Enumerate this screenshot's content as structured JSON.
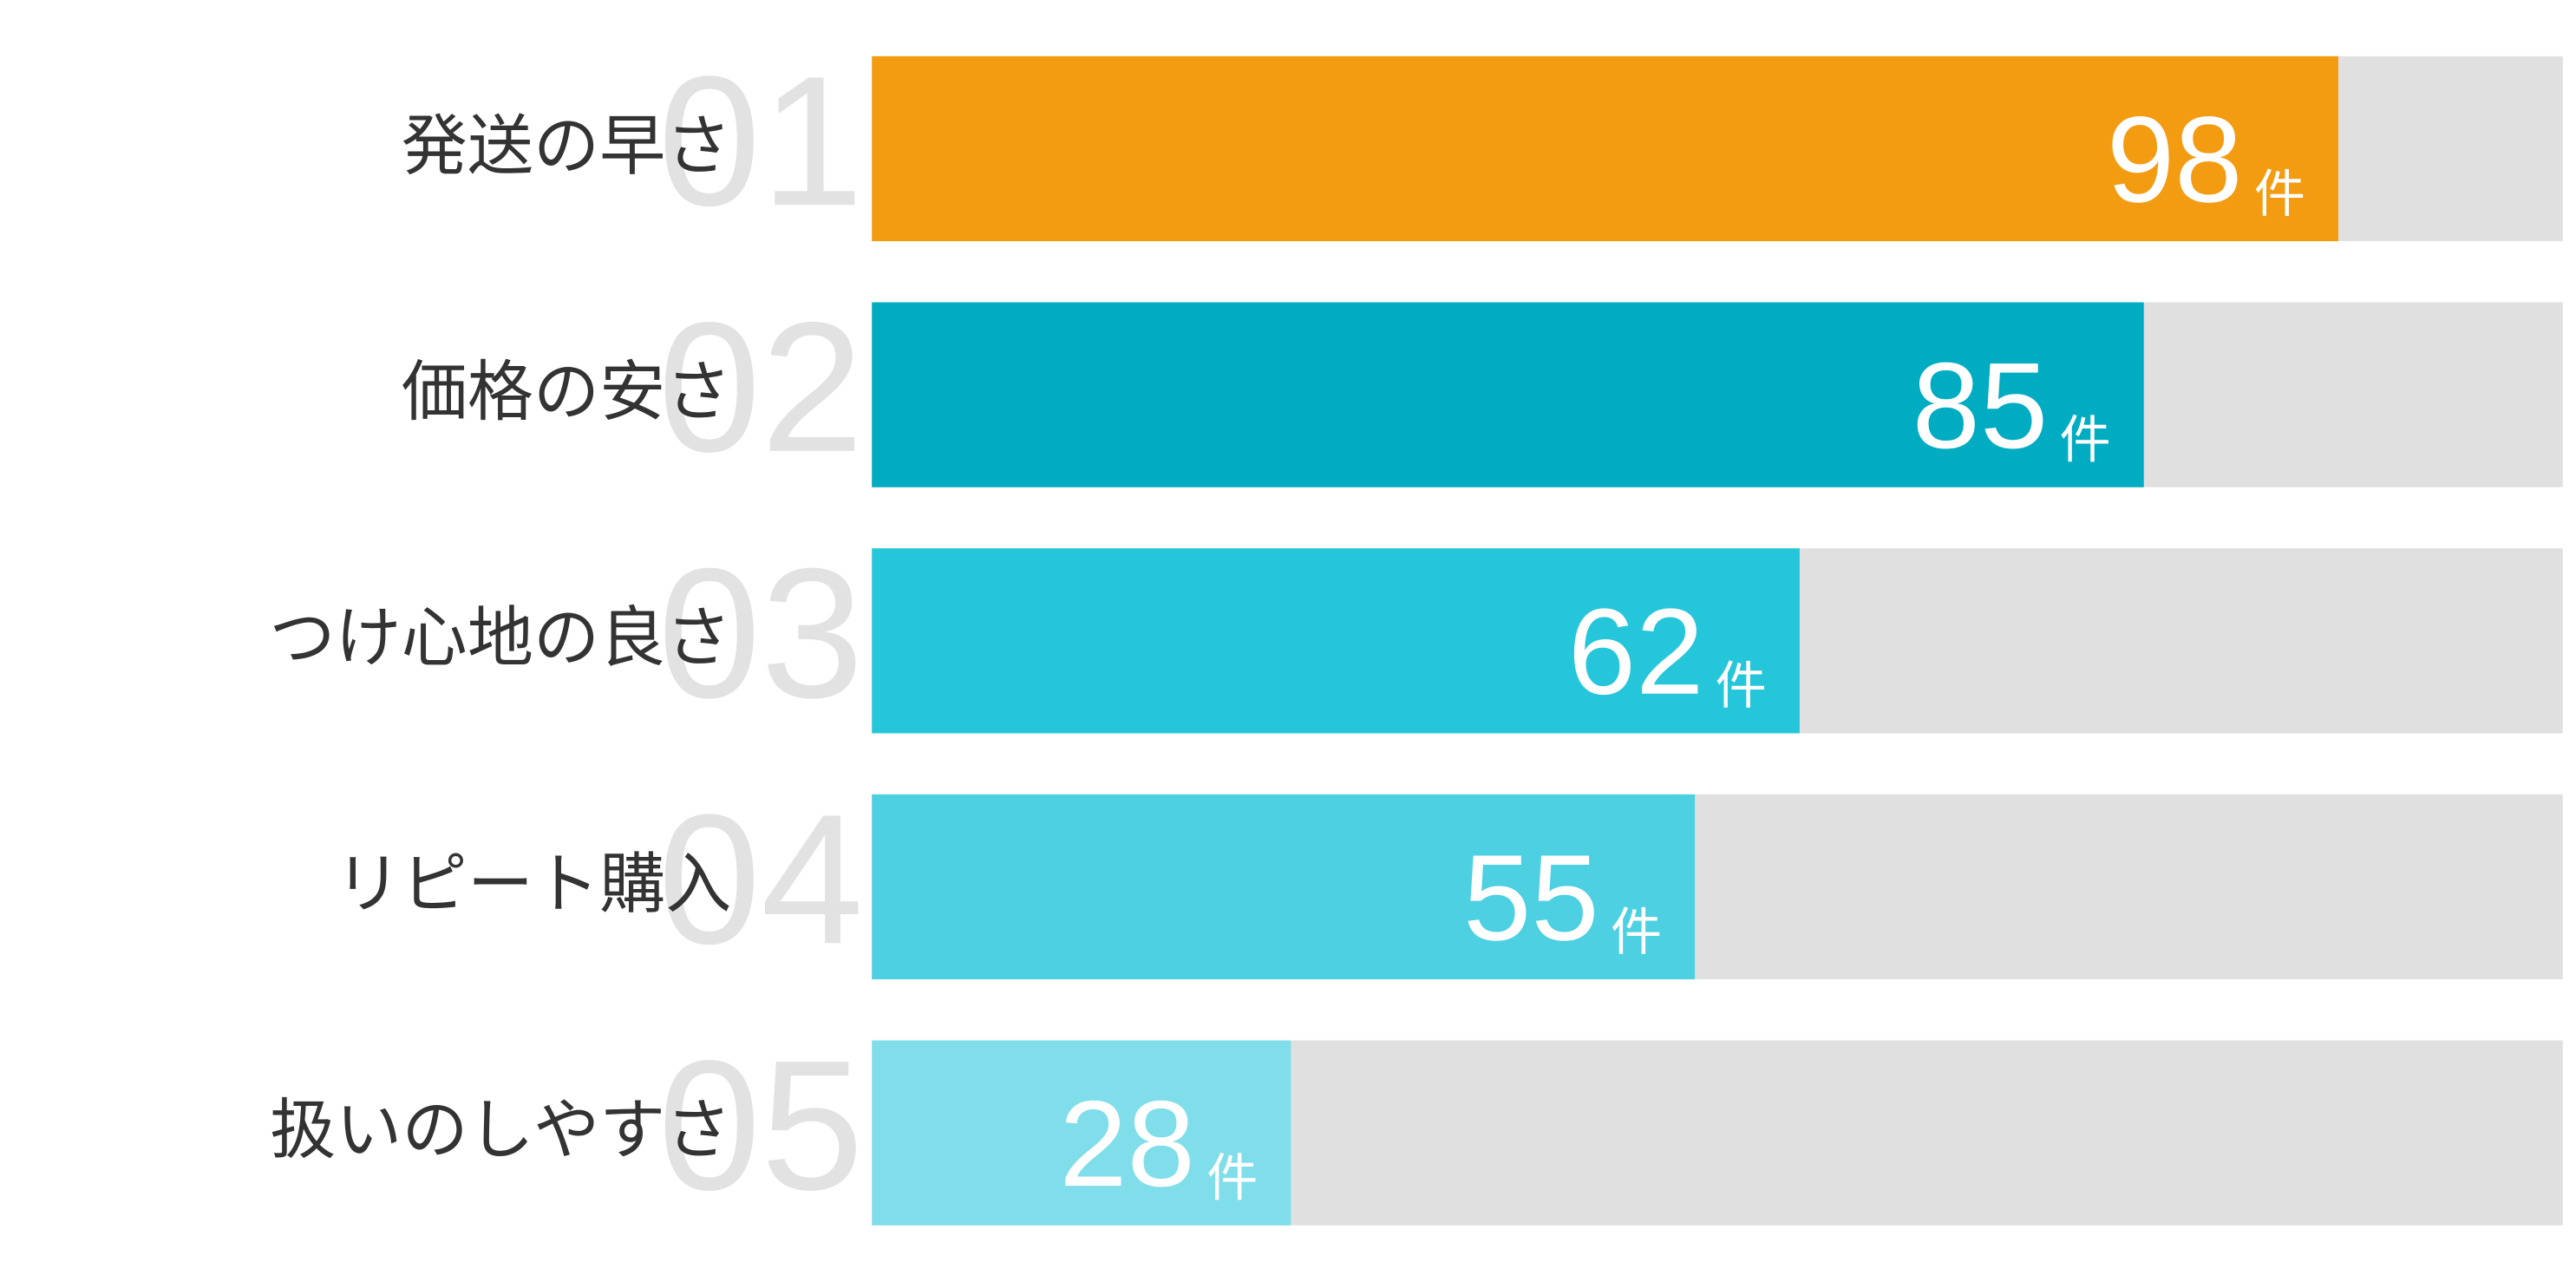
{
  "chart_data": {
    "type": "bar",
    "orientation": "horizontal",
    "categories": [
      "発送の早さ",
      "価格の安さ",
      "つけ心地の良さ",
      "リピート購入",
      "扱いのしやすさ"
    ],
    "ranks": [
      "01",
      "02",
      "03",
      "04",
      "05"
    ],
    "values": [
      98,
      85,
      62,
      55,
      28
    ],
    "unit": "件",
    "colors": [
      "#f39c12",
      "#00acc1",
      "#26c6da",
      "#4dd0e1",
      "#80deea"
    ],
    "xlim": [
      0,
      113
    ]
  }
}
